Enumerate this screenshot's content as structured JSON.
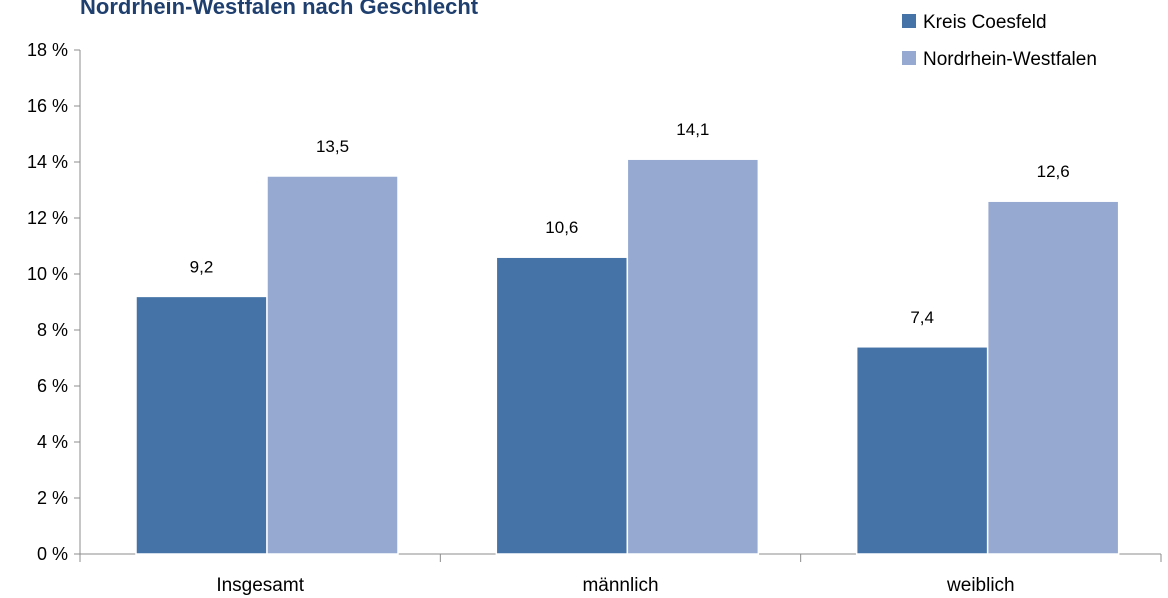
{
  "chart_data": {
    "type": "bar",
    "title": "Nordrhein-Westfalen nach Geschlecht",
    "categories": [
      "Insgesamt",
      "männlich",
      "weiblich"
    ],
    "series": [
      {
        "name": "Kreis Coesfeld",
        "values": [
          9.2,
          10.6,
          7.4
        ],
        "value_labels": [
          "9,2",
          "10,6",
          "7,4"
        ],
        "color": "#4573a7"
      },
      {
        "name": "Nordrhein-Westfalen",
        "values": [
          13.5,
          14.1,
          12.6
        ],
        "value_labels": [
          "13,5",
          "14,1",
          "12,6"
        ],
        "color": "#95a9d1"
      }
    ],
    "y_ticks": [
      0,
      2,
      4,
      6,
      8,
      10,
      12,
      14,
      16,
      18
    ],
    "y_tick_labels": [
      "0 %",
      "2 %",
      "4 %",
      "6 %",
      "8 %",
      "10 %",
      "12 %",
      "14 %",
      "16 %",
      "18 %"
    ],
    "ylim": [
      0,
      18
    ],
    "ylabel": "",
    "xlabel": "",
    "grid": false,
    "legend_position": "top-right"
  }
}
